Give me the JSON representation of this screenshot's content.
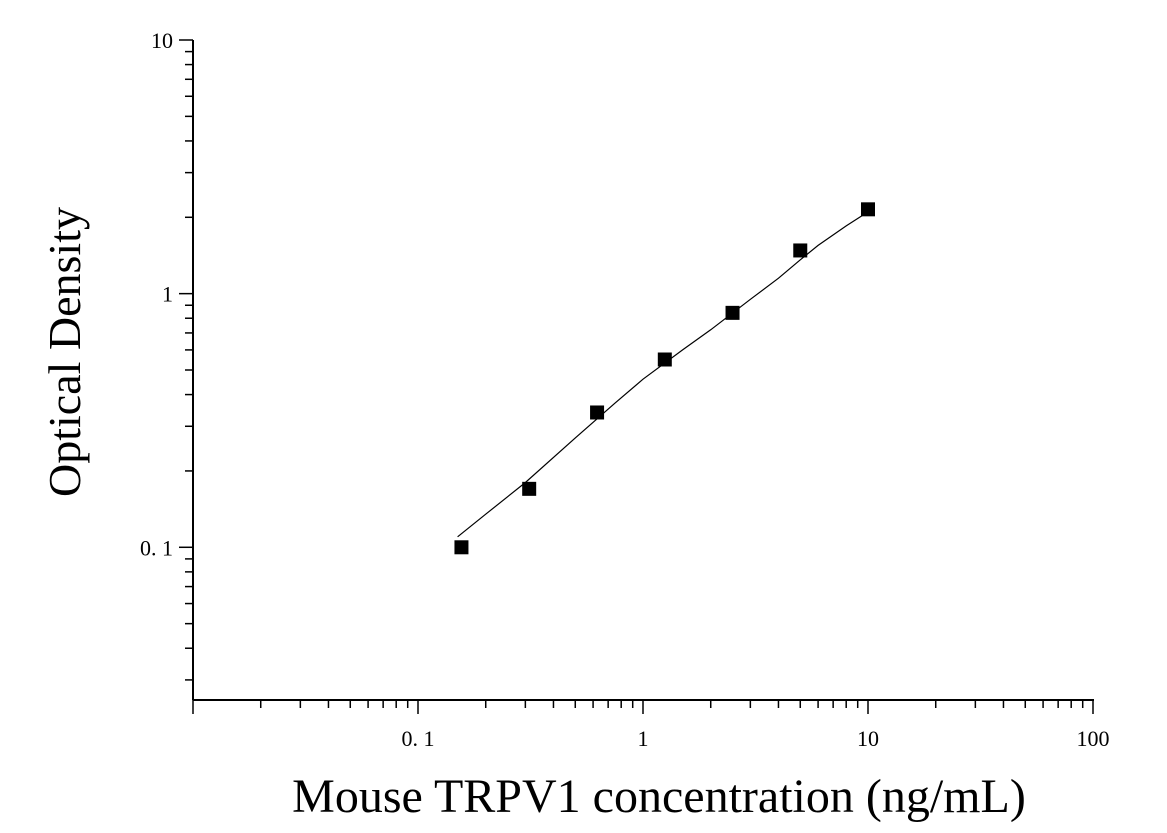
{
  "chart_data": {
    "type": "scatter",
    "title": "",
    "xlabel": "Mouse TRPV1 concentration (ng/mL)",
    "ylabel": "Optical Density",
    "x_scale": "log",
    "y_scale": "log",
    "xlim": [
      0.01,
      100
    ],
    "ylim": [
      0.025,
      10
    ],
    "x_ticks": [
      {
        "value": 0.1,
        "label": "0. 1"
      },
      {
        "value": 1,
        "label": "1"
      },
      {
        "value": 10,
        "label": "10"
      },
      {
        "value": 100,
        "label": "100"
      }
    ],
    "y_ticks": [
      {
        "value": 0.1,
        "label": "0. 1"
      },
      {
        "value": 1,
        "label": "1"
      },
      {
        "value": 10,
        "label": "10"
      }
    ],
    "grid": false,
    "legend": "none",
    "marker_color": "#000000",
    "curve_color": "#000000",
    "series": [
      {
        "x": [
          0.156,
          0.312,
          0.625,
          1.25,
          2.5,
          5,
          10
        ],
        "y": [
          0.1,
          0.17,
          0.34,
          0.55,
          0.84,
          1.48,
          2.15
        ]
      }
    ],
    "fit_curve": {
      "x": [
        0.15,
        0.2,
        0.3,
        0.5,
        0.75,
        1,
        1.5,
        2,
        3,
        4,
        5,
        6,
        8,
        10
      ],
      "y": [
        0.11,
        0.135,
        0.18,
        0.27,
        0.37,
        0.46,
        0.6,
        0.72,
        0.95,
        1.15,
        1.36,
        1.55,
        1.85,
        2.1
      ]
    }
  }
}
